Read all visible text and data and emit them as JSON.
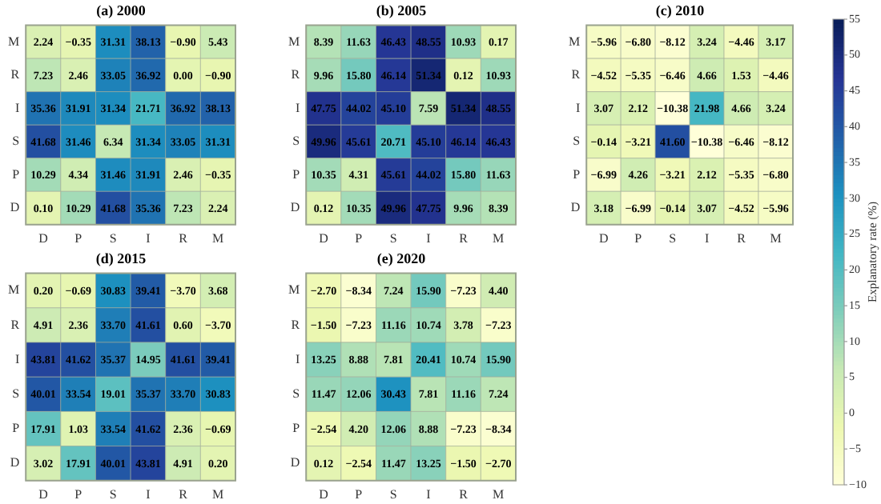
{
  "chart_data": [
    {
      "type": "heatmap",
      "title": "(a) 2000",
      "categories": [
        "D",
        "P",
        "S",
        "I",
        "R",
        "M"
      ],
      "y_categories": [
        "M",
        "R",
        "I",
        "S",
        "P",
        "D"
      ],
      "data_labels": true,
      "cells": [
        [
          2.24,
          -0.35,
          31.31,
          38.13,
          -0.9,
          5.43
        ],
        [
          7.23,
          2.46,
          33.05,
          36.92,
          0.0,
          -0.9
        ],
        [
          35.36,
          31.91,
          31.34,
          21.71,
          36.92,
          38.13
        ],
        [
          41.68,
          31.46,
          6.34,
          31.34,
          33.05,
          31.31
        ],
        [
          10.29,
          4.34,
          31.46,
          31.91,
          2.46,
          -0.35
        ],
        [
          0.1,
          10.29,
          41.68,
          35.36,
          7.23,
          2.24
        ]
      ],
      "cell_labels": [
        [
          "2.24",
          "−0.35",
          "31.31",
          "38.13",
          "−0.90",
          "5.43"
        ],
        [
          "7.23",
          "2.46",
          "33.05",
          "36.92",
          "0.00",
          "−0.90"
        ],
        [
          "35.36",
          "31.91",
          "31.34",
          "21.71",
          "36.92",
          "38.13"
        ],
        [
          "41.68",
          "31.46",
          "6.34",
          "31.34",
          "33.05",
          "31.31"
        ],
        [
          "10.29",
          "4.34",
          "31.46",
          "31.91",
          "2.46",
          "−0.35"
        ],
        [
          "0.10",
          "10.29",
          "41.68",
          "35.36",
          "7.23",
          "2.24"
        ]
      ]
    },
    {
      "type": "heatmap",
      "title": "(b) 2005",
      "categories": [
        "D",
        "P",
        "S",
        "I",
        "R",
        "M"
      ],
      "y_categories": [
        "M",
        "R",
        "I",
        "S",
        "P",
        "D"
      ],
      "data_labels": true,
      "cells": [
        [
          8.39,
          11.63,
          46.43,
          48.55,
          10.93,
          0.17
        ],
        [
          9.96,
          15.8,
          46.14,
          51.34,
          0.12,
          10.93
        ],
        [
          47.75,
          44.02,
          45.1,
          7.59,
          51.34,
          48.55
        ],
        [
          49.96,
          45.61,
          20.71,
          45.1,
          46.14,
          46.43
        ],
        [
          10.35,
          4.31,
          45.61,
          44.02,
          15.8,
          11.63
        ],
        [
          0.12,
          10.35,
          49.96,
          47.75,
          9.96,
          8.39
        ]
      ],
      "cell_labels": [
        [
          "8.39",
          "11.63",
          "46.43",
          "48.55",
          "10.93",
          "0.17"
        ],
        [
          "9.96",
          "15.80",
          "46.14",
          "51.34",
          "0.12",
          "10.93"
        ],
        [
          "47.75",
          "44.02",
          "45.10",
          "7.59",
          "51.34",
          "48.55"
        ],
        [
          "49.96",
          "45.61",
          "20.71",
          "45.10",
          "46.14",
          "46.43"
        ],
        [
          "10.35",
          "4.31",
          "45.61",
          "44.02",
          "15.80",
          "11.63"
        ],
        [
          "0.12",
          "10.35",
          "49.96",
          "47.75",
          "9.96",
          "8.39"
        ]
      ]
    },
    {
      "type": "heatmap",
      "title": "(c) 2010",
      "categories": [
        "D",
        "P",
        "S",
        "I",
        "R",
        "M"
      ],
      "y_categories": [
        "M",
        "R",
        "I",
        "S",
        "P",
        "D"
      ],
      "data_labels": true,
      "clabel": "Explanatory rate (%)",
      "clim": [
        -10,
        55
      ],
      "cticks": [
        -10,
        -5,
        0,
        5,
        10,
        15,
        20,
        25,
        30,
        35,
        40,
        45,
        50,
        55
      ],
      "cells": [
        [
          -5.96,
          -6.8,
          -8.12,
          3.24,
          -4.46,
          3.17
        ],
        [
          -4.52,
          -5.35,
          -6.46,
          4.66,
          1.53,
          -4.46
        ],
        [
          3.07,
          2.12,
          -10.38,
          21.98,
          4.66,
          3.24
        ],
        [
          -0.14,
          -3.21,
          41.6,
          -10.38,
          -6.46,
          -8.12
        ],
        [
          -6.99,
          4.26,
          -3.21,
          2.12,
          -5.35,
          -6.8
        ],
        [
          3.18,
          -6.99,
          -0.14,
          3.07,
          -4.52,
          -5.96
        ]
      ],
      "cell_labels": [
        [
          "−5.96",
          "−6.80",
          "−8.12",
          "3.24",
          "−4.46",
          "3.17"
        ],
        [
          "−4.52",
          "−5.35",
          "−6.46",
          "4.66",
          "1.53",
          "−4.46"
        ],
        [
          "3.07",
          "2.12",
          "−10.38",
          "21.98",
          "4.66",
          "3.24"
        ],
        [
          "−0.14",
          "−3.21",
          "41.60",
          "−10.38",
          "−6.46",
          "−8.12"
        ],
        [
          "−6.99",
          "4.26",
          "−3.21",
          "2.12",
          "−5.35",
          "−6.80"
        ],
        [
          "3.18",
          "−6.99",
          "−0.14",
          "3.07",
          "−4.52",
          "−5.96"
        ]
      ]
    },
    {
      "type": "heatmap",
      "title": "(d) 2015",
      "categories": [
        "D",
        "P",
        "S",
        "I",
        "R",
        "M"
      ],
      "y_categories": [
        "M",
        "R",
        "I",
        "S",
        "P",
        "D"
      ],
      "data_labels": true,
      "cells": [
        [
          0.2,
          -0.69,
          30.83,
          39.41,
          -3.7,
          3.68
        ],
        [
          4.91,
          2.36,
          33.7,
          41.61,
          0.6,
          -3.7
        ],
        [
          43.81,
          41.62,
          35.37,
          14.95,
          41.61,
          39.41
        ],
        [
          40.01,
          33.54,
          19.01,
          35.37,
          33.7,
          30.83
        ],
        [
          17.91,
          1.03,
          33.54,
          41.62,
          2.36,
          -0.69
        ],
        [
          3.02,
          17.91,
          40.01,
          43.81,
          4.91,
          0.2
        ]
      ],
      "cell_labels": [
        [
          "0.20",
          "−0.69",
          "30.83",
          "39.41",
          "−3.70",
          "3.68"
        ],
        [
          "4.91",
          "2.36",
          "33.70",
          "41.61",
          "0.60",
          "−3.70"
        ],
        [
          "43.81",
          "41.62",
          "35.37",
          "14.95",
          "41.61",
          "39.41"
        ],
        [
          "40.01",
          "33.54",
          "19.01",
          "35.37",
          "33.70",
          "30.83"
        ],
        [
          "17.91",
          "1.03",
          "33.54",
          "41.62",
          "2.36",
          "−0.69"
        ],
        [
          "3.02",
          "17.91",
          "40.01",
          "43.81",
          "4.91",
          "0.20"
        ]
      ]
    },
    {
      "type": "heatmap",
      "title": "(e) 2020",
      "categories": [
        "D",
        "P",
        "S",
        "I",
        "R",
        "M"
      ],
      "y_categories": [
        "M",
        "R",
        "I",
        "S",
        "P",
        "D"
      ],
      "data_labels": true,
      "cells": [
        [
          -2.7,
          -8.34,
          7.24,
          15.9,
          -7.23,
          4.4
        ],
        [
          -1.5,
          -7.23,
          11.16,
          10.74,
          3.78,
          -7.23
        ],
        [
          13.25,
          8.88,
          7.81,
          20.41,
          10.74,
          15.9
        ],
        [
          11.47,
          12.06,
          30.43,
          7.81,
          11.16,
          7.24
        ],
        [
          -2.54,
          4.2,
          12.06,
          8.88,
          -7.23,
          -8.34
        ],
        [
          0.12,
          -2.54,
          11.47,
          13.25,
          -1.5,
          -2.7
        ]
      ],
      "cell_labels": [
        [
          "−2.70",
          "−8.34",
          "7.24",
          "15.90",
          "−7.23",
          "4.40"
        ],
        [
          "−1.50",
          "−7.23",
          "11.16",
          "10.74",
          "3.78",
          "−7.23"
        ],
        [
          "13.25",
          "8.88",
          "7.81",
          "20.41",
          "10.74",
          "15.90"
        ],
        [
          "11.47",
          "12.06",
          "30.43",
          "7.81",
          "11.16",
          "7.24"
        ],
        [
          "−2.54",
          "4.20",
          "12.06",
          "8.88",
          "−7.23",
          "−8.34"
        ],
        [
          "0.12",
          "−2.54",
          "11.47",
          "13.25",
          "−1.50",
          "−2.70"
        ]
      ]
    }
  ]
}
